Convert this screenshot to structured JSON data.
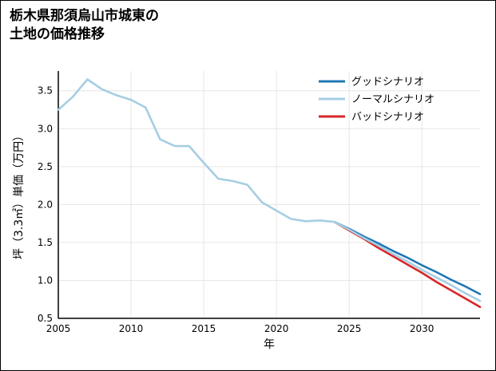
{
  "page": {
    "background": "#ffffff",
    "border_color": "#000000"
  },
  "chart_data": {
    "type": "line",
    "title": "栃木県那須烏山市城東の土地の価格推移",
    "title_line1": "栃木県那須烏山市城東の",
    "title_line2": "土地の価格推移",
    "xlabel": "年",
    "ylabel": "坪（3.3㎡）単価（万円）",
    "xlim": [
      2005,
      2034
    ],
    "ylim": [
      0.5,
      3.76
    ],
    "xticks": [
      2005,
      2010,
      2015,
      2020,
      2025,
      2030
    ],
    "yticks": [
      0.5,
      1.0,
      1.5,
      2.0,
      2.5,
      3.0,
      3.5
    ],
    "grid": true,
    "grid_color": "#e6e6e6",
    "axis_color": "#000000",
    "tick_label_color": "#000000",
    "legend_position": "upper right",
    "series": [
      {
        "id": "good",
        "name": "グッドシナリオ",
        "color": "#1f77b4",
        "zorder": 1,
        "x": [
          2024,
          2025,
          2026,
          2027,
          2028,
          2029,
          2030,
          2031,
          2032,
          2033,
          2034
        ],
        "values": [
          1.77,
          1.68,
          1.58,
          1.49,
          1.39,
          1.3,
          1.2,
          1.11,
          1.01,
          0.92,
          0.82
        ]
      },
      {
        "id": "normal",
        "name": "ノーマルシナリオ",
        "color": "#a6cee3",
        "zorder": 2,
        "x": [
          2005,
          2006,
          2007,
          2008,
          2009,
          2010,
          2011,
          2012,
          2013,
          2014,
          2015,
          2016,
          2017,
          2018,
          2019,
          2020,
          2021,
          2022,
          2023,
          2024,
          2025,
          2026,
          2027,
          2028,
          2029,
          2030,
          2031,
          2032,
          2033,
          2034
        ],
        "values": [
          3.25,
          3.42,
          3.65,
          3.52,
          3.44,
          3.38,
          3.28,
          2.86,
          2.77,
          2.77,
          2.55,
          2.34,
          2.31,
          2.26,
          2.03,
          1.92,
          1.81,
          1.78,
          1.79,
          1.77,
          1.67,
          1.56,
          1.46,
          1.35,
          1.25,
          1.14,
          1.04,
          0.94,
          0.83,
          0.73
        ]
      },
      {
        "id": "bad",
        "name": "バッドシナリオ",
        "color": "#d62728",
        "zorder": 1,
        "x": [
          2024,
          2025,
          2026,
          2027,
          2028,
          2029,
          2030,
          2031,
          2032,
          2033,
          2034
        ],
        "values": [
          1.77,
          1.66,
          1.55,
          1.43,
          1.32,
          1.21,
          1.1,
          0.98,
          0.87,
          0.76,
          0.65
        ]
      }
    ]
  }
}
